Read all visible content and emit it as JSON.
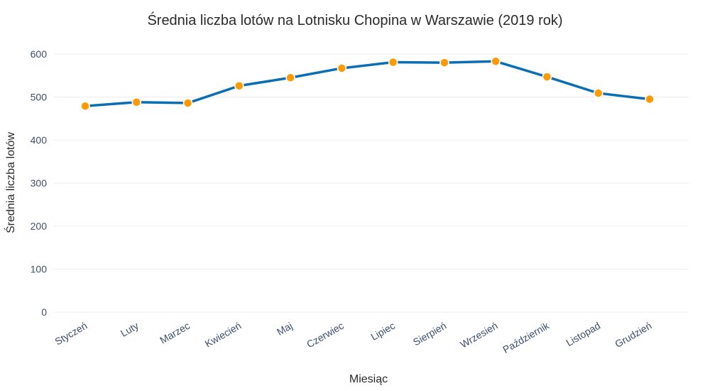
{
  "chart_data": {
    "type": "line",
    "title": "Średnia liczba lotów na Lotnisku Chopina w Warszawie (2019 rok)",
    "xlabel": "Miesiąc",
    "ylabel": "Średnia liczba lotów",
    "categories": [
      "Styczeń",
      "Luty",
      "Marzec",
      "Kwiecień",
      "Maj",
      "Czerwiec",
      "Lipiec",
      "Sierpień",
      "Wrzesień",
      "Październik",
      "Listopad",
      "Grudzień"
    ],
    "series": [
      {
        "values": [
          479,
          488,
          486,
          526,
          545,
          567,
          581,
          580,
          583,
          547,
          509,
          495
        ]
      }
    ],
    "ylim": [
      0,
      600
    ],
    "yticks": [
      0,
      100,
      200,
      300,
      400,
      500,
      600
    ],
    "grid": true,
    "colors": {
      "line": "#0a6eb4",
      "marker": "#ff9a00"
    }
  }
}
